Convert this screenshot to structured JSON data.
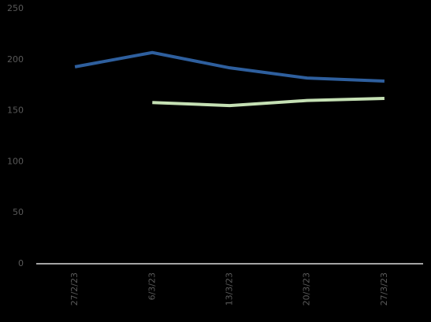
{
  "chart_data": {
    "type": "line",
    "categories": [
      "27/2/23",
      "6/3/23",
      "13/3/23",
      "20/3/23",
      "27/3/23"
    ],
    "series": [
      {
        "color": "#2e5f9e",
        "values": [
          193,
          207,
          192,
          182,
          179
        ]
      },
      {
        "color": "#c5e0b4",
        "values": [
          null,
          158,
          155,
          160,
          162
        ]
      }
    ],
    "ylim": [
      0,
      250
    ],
    "yticks": [
      0,
      50,
      100,
      150,
      200,
      250
    ],
    "grid": false
  }
}
